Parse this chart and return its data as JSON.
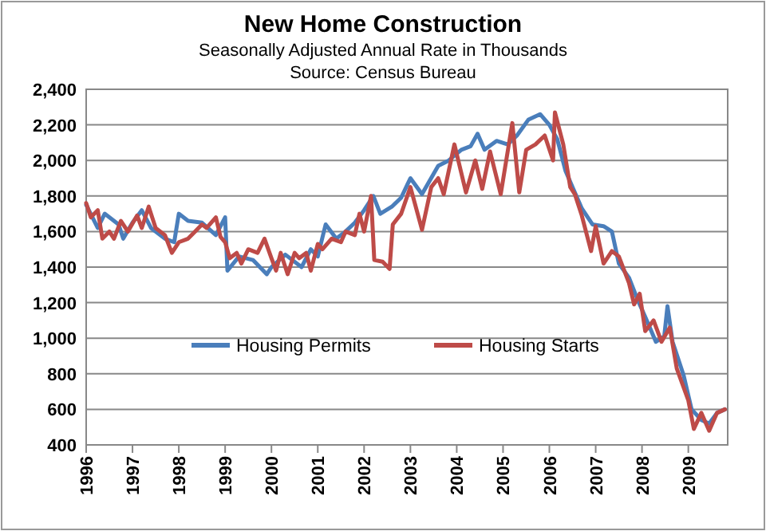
{
  "chart_data": {
    "type": "line",
    "title": "New Home Construction",
    "subtitle": "Seasonally Adjusted Annual Rate in Thousands",
    "annotations": [
      "Source: Census Bureau"
    ],
    "xlim": [
      1996,
      2009.85
    ],
    "xticks": [
      {
        "value": 1996,
        "label": "1996"
      },
      {
        "value": 1997,
        "label": "1997"
      },
      {
        "value": 1998,
        "label": "1998"
      },
      {
        "value": 1999,
        "label": "1999"
      },
      {
        "value": 2000,
        "label": "2000"
      },
      {
        "value": 2001,
        "label": "2001"
      },
      {
        "value": 2002,
        "label": "2002"
      },
      {
        "value": 2003,
        "label": "2003"
      },
      {
        "value": 2004,
        "label": "2004"
      },
      {
        "value": 2005,
        "label": "2005"
      },
      {
        "value": 2006,
        "label": "2006"
      },
      {
        "value": 2007,
        "label": "2007"
      },
      {
        "value": 2008,
        "label": "2008"
      },
      {
        "value": 2009,
        "label": "2009"
      }
    ],
    "ylim": [
      400,
      2400
    ],
    "yticks": [
      {
        "value": 400,
        "label": "400"
      },
      {
        "value": 600,
        "label": "600"
      },
      {
        "value": 800,
        "label": "800"
      },
      {
        "value": 1000,
        "label": "1,000"
      },
      {
        "value": 1200,
        "label": "1,200"
      },
      {
        "value": 1400,
        "label": "1,400"
      },
      {
        "value": 1600,
        "label": "1,600"
      },
      {
        "value": 1800,
        "label": "1,800"
      },
      {
        "value": 2000,
        "label": "2,000"
      },
      {
        "value": 2200,
        "label": "2,200"
      },
      {
        "value": 2400,
        "label": "2,400"
      }
    ],
    "grid": "y",
    "legend": "bottom",
    "marker": "none",
    "line_style": "solid",
    "series": [
      {
        "name": "Housing Permits",
        "color": "#4a7ebb",
        "x": [
          1996,
          1996.25,
          1996.4,
          1996.7,
          1996.8,
          1997,
          1997.2,
          1997.4,
          1997.7,
          1997.9,
          1998,
          1998.2,
          1998.5,
          1998.8,
          1999,
          1999.05,
          1999.3,
          1999.6,
          1999.9,
          2000,
          2000.3,
          2000.65,
          2000.85,
          2001,
          2001.17,
          2001.4,
          2001.6,
          2001.8,
          2002,
          2002.2,
          2002.35,
          2002.6,
          2002.8,
          2003,
          2003.25,
          2003.6,
          2003.83,
          2004.1,
          2004.3,
          2004.45,
          2004.6,
          2004.86,
          2005.1,
          2005.3,
          2005.55,
          2005.8,
          2006,
          2006.17,
          2006.35,
          2006.5,
          2006.7,
          2006.93,
          2007.17,
          2007.35,
          2007.5,
          2007.72,
          2007.9,
          2008.07,
          2008.3,
          2008.48,
          2008.55,
          2008.66,
          2008.9,
          2009.07,
          2009.28,
          2009.45,
          2009.62,
          2009.79
        ],
        "values": [
          1750,
          1620,
          1700,
          1640,
          1560,
          1650,
          1720,
          1620,
          1560,
          1540,
          1700,
          1660,
          1650,
          1580,
          1680,
          1380,
          1460,
          1440,
          1360,
          1400,
          1470,
          1400,
          1500,
          1460,
          1640,
          1560,
          1600,
          1650,
          1720,
          1800,
          1700,
          1740,
          1790,
          1900,
          1810,
          1970,
          2000,
          2060,
          2080,
          2150,
          2060,
          2110,
          2090,
          2140,
          2230,
          2260,
          2200,
          2120,
          1940,
          1850,
          1730,
          1640,
          1630,
          1600,
          1420,
          1340,
          1220,
          1120,
          980,
          1010,
          1180,
          980,
          790,
          600,
          540,
          520,
          580,
          600
        ]
      },
      {
        "name": "Housing Starts",
        "color": "#be4b48",
        "x": [
          1996,
          1996.1,
          1996.25,
          1996.35,
          1996.5,
          1996.6,
          1996.75,
          1996.9,
          1997.1,
          1997.2,
          1997.35,
          1997.5,
          1997.7,
          1997.85,
          1998,
          1998.2,
          1998.35,
          1998.5,
          1998.6,
          1998.8,
          1998.9,
          1999,
          1999.1,
          1999.25,
          1999.35,
          1999.5,
          1999.7,
          1999.85,
          2000,
          2000.1,
          2000.2,
          2000.35,
          2000.5,
          2000.6,
          2000.75,
          2000.85,
          2001,
          2001.1,
          2001.3,
          2001.5,
          2001.6,
          2001.8,
          2001.9,
          2002,
          2002.15,
          2002.22,
          2002.4,
          2002.55,
          2002.62,
          2002.8,
          2003,
          2003.25,
          2003.45,
          2003.6,
          2003.72,
          2003.95,
          2004.2,
          2004.4,
          2004.55,
          2004.72,
          2004.95,
          2005.2,
          2005.35,
          2005.5,
          2005.7,
          2005.9,
          2006.08,
          2006.12,
          2006.3,
          2006.45,
          2006.55,
          2006.7,
          2006.9,
          2007,
          2007.17,
          2007.35,
          2007.5,
          2007.72,
          2007.83,
          2007.95,
          2008.07,
          2008.25,
          2008.42,
          2008.6,
          2008.75,
          2009,
          2009.12,
          2009.28,
          2009.45,
          2009.62,
          2009.79
        ],
        "values": [
          1760,
          1680,
          1720,
          1560,
          1600,
          1560,
          1660,
          1600,
          1690,
          1620,
          1740,
          1620,
          1580,
          1480,
          1540,
          1560,
          1600,
          1640,
          1620,
          1680,
          1570,
          1540,
          1450,
          1480,
          1420,
          1500,
          1480,
          1560,
          1450,
          1380,
          1480,
          1360,
          1480,
          1450,
          1480,
          1380,
          1530,
          1500,
          1560,
          1540,
          1600,
          1580,
          1700,
          1600,
          1800,
          1440,
          1430,
          1390,
          1640,
          1700,
          1850,
          1610,
          1850,
          1900,
          1810,
          2090,
          1820,
          2000,
          1840,
          2050,
          1810,
          2210,
          1820,
          2060,
          2090,
          2140,
          2000,
          2270,
          2090,
          1850,
          1810,
          1690,
          1490,
          1630,
          1420,
          1490,
          1460,
          1310,
          1190,
          1250,
          1040,
          1100,
          980,
          1060,
          830,
          650,
          490,
          580,
          480,
          580,
          600
        ]
      }
    ]
  }
}
